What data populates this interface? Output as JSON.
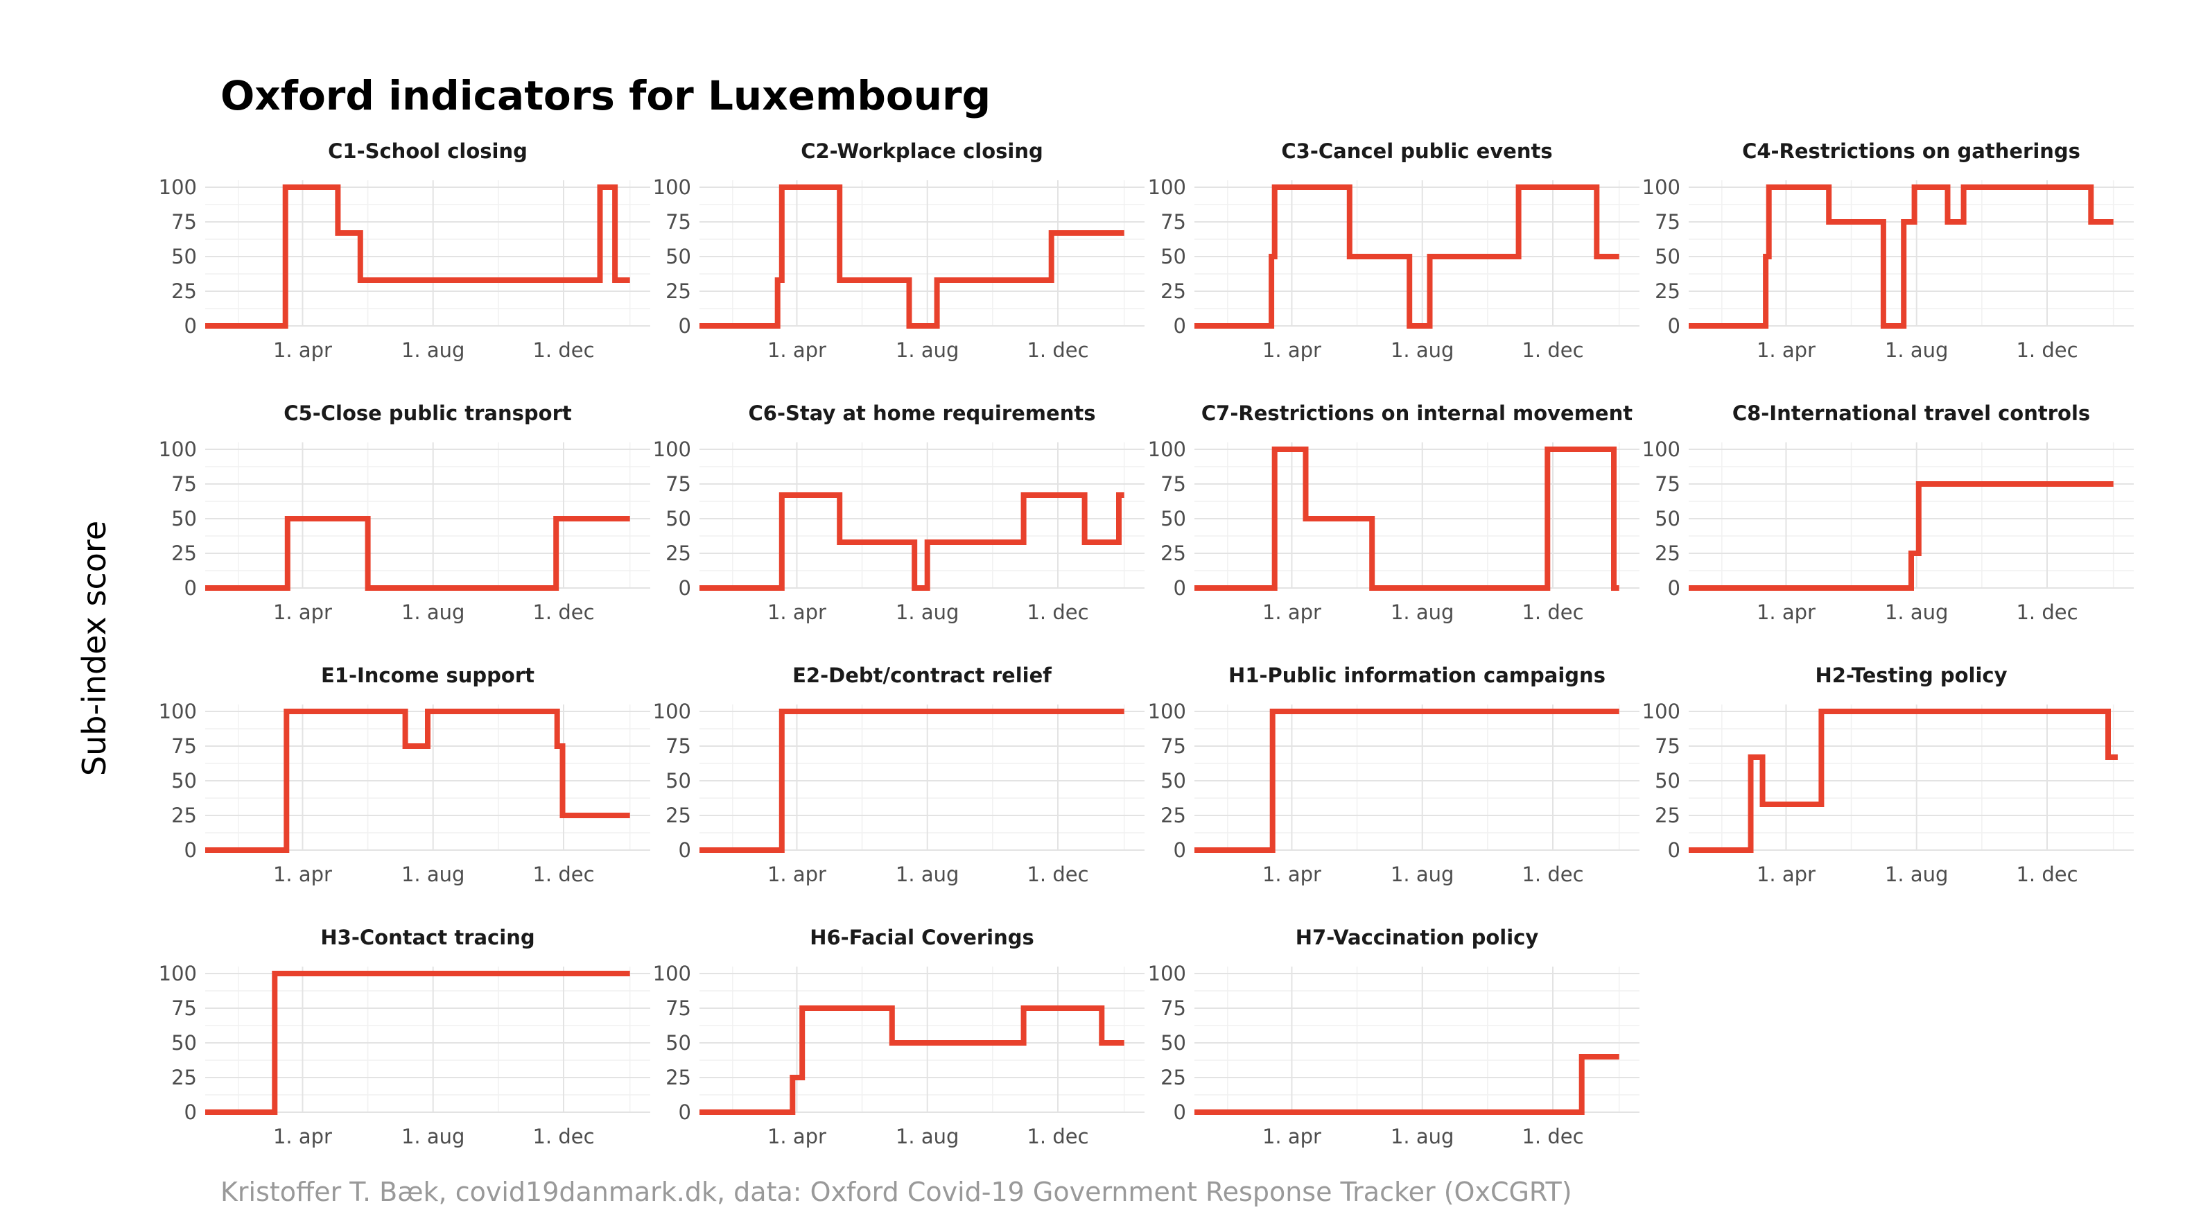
{
  "title": "Oxford indicators for Luxembourg",
  "caption": "Kristoffer T. Bæk, covid19danmark.dk, data: Oxford Covid-19 Government Response Tracker (OxCGRT)",
  "ylabel": "Sub-index score",
  "colors": {
    "line": "#e8412c",
    "grid": "#e3e3e3"
  },
  "chart_data": {
    "type": "line",
    "facets": "4 columns",
    "x_range": [
      "2020-01-01",
      "2021-02-20"
    ],
    "y_range": [
      0,
      100
    ],
    "y_ticks": [
      0,
      25,
      50,
      75,
      100
    ],
    "y_tick_labels": [
      "0",
      "25",
      "50",
      "75",
      "100"
    ],
    "x_ticks": [
      "2020-04-01",
      "2020-08-01",
      "2020-12-01"
    ],
    "x_tick_labels": [
      "1. apr",
      "1. aug",
      "1. dec"
    ],
    "grid": true,
    "panels": [
      {
        "title": "C1-School closing",
        "points": [
          [
            "2020-01-01",
            0
          ],
          [
            "2020-03-16",
            100
          ],
          [
            "2020-05-04",
            67
          ],
          [
            "2020-05-25",
            33
          ],
          [
            "2021-01-04",
            100
          ],
          [
            "2021-01-18",
            33
          ],
          [
            "2021-02-01",
            33
          ]
        ]
      },
      {
        "title": "C2-Workplace closing",
        "points": [
          [
            "2020-01-01",
            0
          ],
          [
            "2020-03-14",
            33
          ],
          [
            "2020-03-18",
            100
          ],
          [
            "2020-05-11",
            33
          ],
          [
            "2020-07-15",
            0
          ],
          [
            "2020-08-01",
            0
          ],
          [
            "2020-08-10",
            33
          ],
          [
            "2020-11-25",
            67
          ],
          [
            "2021-02-01",
            67
          ]
        ]
      },
      {
        "title": "C3-Cancel public events",
        "points": [
          [
            "2020-01-01",
            0
          ],
          [
            "2020-03-13",
            50
          ],
          [
            "2020-03-16",
            100
          ],
          [
            "2020-05-25",
            50
          ],
          [
            "2020-07-20",
            0
          ],
          [
            "2020-08-08",
            50
          ],
          [
            "2020-10-30",
            100
          ],
          [
            "2021-01-11",
            50
          ],
          [
            "2021-02-01",
            50
          ]
        ]
      },
      {
        "title": "C4-Restrictions on gatherings",
        "points": [
          [
            "2020-01-01",
            0
          ],
          [
            "2020-03-13",
            50
          ],
          [
            "2020-03-16",
            100
          ],
          [
            "2020-05-11",
            75
          ],
          [
            "2020-07-01",
            0
          ],
          [
            "2020-07-20",
            75
          ],
          [
            "2020-07-30",
            100
          ],
          [
            "2020-08-30",
            75
          ],
          [
            "2020-09-14",
            100
          ],
          [
            "2021-01-11",
            75
          ],
          [
            "2021-02-01",
            75
          ]
        ]
      },
      {
        "title": "C5-Close public transport",
        "points": [
          [
            "2020-01-01",
            0
          ],
          [
            "2020-03-18",
            50
          ],
          [
            "2020-06-01",
            0
          ],
          [
            "2020-11-24",
            50
          ],
          [
            "2021-02-01",
            50
          ]
        ]
      },
      {
        "title": "C6-Stay at home requirements",
        "points": [
          [
            "2020-01-01",
            0
          ],
          [
            "2020-03-18",
            67
          ],
          [
            "2020-05-11",
            33
          ],
          [
            "2020-07-20",
            0
          ],
          [
            "2020-08-01",
            33
          ],
          [
            "2020-10-30",
            67
          ],
          [
            "2020-12-26",
            33
          ],
          [
            "2021-01-27",
            67
          ],
          [
            "2021-02-01",
            67
          ]
        ]
      },
      {
        "title": "C7-Restrictions on internal movement",
        "points": [
          [
            "2020-01-01",
            0
          ],
          [
            "2020-03-16",
            100
          ],
          [
            "2020-04-14",
            50
          ],
          [
            "2020-06-15",
            0
          ],
          [
            "2020-11-26",
            100
          ],
          [
            "2021-01-27",
            0
          ],
          [
            "2021-02-01",
            0
          ]
        ]
      },
      {
        "title": "C8-International travel controls",
        "points": [
          [
            "2020-01-01",
            0
          ],
          [
            "2020-07-27",
            25
          ],
          [
            "2020-08-03",
            75
          ],
          [
            "2021-02-01",
            75
          ]
        ]
      },
      {
        "title": "E1-Income support",
        "points": [
          [
            "2020-01-01",
            0
          ],
          [
            "2020-03-17",
            100
          ],
          [
            "2020-07-06",
            75
          ],
          [
            "2020-07-27",
            100
          ],
          [
            "2020-11-25",
            75
          ],
          [
            "2020-11-30",
            25
          ],
          [
            "2021-02-01",
            25
          ]
        ]
      },
      {
        "title": "E2-Debt/contract relief",
        "points": [
          [
            "2020-01-01",
            0
          ],
          [
            "2020-03-18",
            100
          ],
          [
            "2021-02-01",
            100
          ]
        ]
      },
      {
        "title": "H1-Public information campaigns",
        "points": [
          [
            "2020-01-01",
            0
          ],
          [
            "2020-03-14",
            100
          ],
          [
            "2021-02-01",
            100
          ]
        ]
      },
      {
        "title": "H2-Testing policy",
        "points": [
          [
            "2020-01-01",
            0
          ],
          [
            "2020-02-28",
            67
          ],
          [
            "2020-03-10",
            33
          ],
          [
            "2020-05-04",
            100
          ],
          [
            "2021-01-27",
            67
          ],
          [
            "2021-02-05",
            67
          ]
        ]
      },
      {
        "title": "H3-Contact tracing",
        "points": [
          [
            "2020-01-01",
            0
          ],
          [
            "2020-03-06",
            100
          ],
          [
            "2021-02-01",
            100
          ]
        ]
      },
      {
        "title": "H6-Facial Coverings",
        "points": [
          [
            "2020-01-01",
            0
          ],
          [
            "2020-03-28",
            25
          ],
          [
            "2020-04-06",
            75
          ],
          [
            "2020-06-29",
            50
          ],
          [
            "2020-10-30",
            75
          ],
          [
            "2021-01-11",
            50
          ],
          [
            "2021-02-01",
            50
          ]
        ]
      },
      {
        "title": "H7-Vaccination policy",
        "points": [
          [
            "2020-01-01",
            0
          ],
          [
            "2020-12-28",
            40
          ],
          [
            "2021-02-01",
            40
          ]
        ]
      }
    ]
  }
}
